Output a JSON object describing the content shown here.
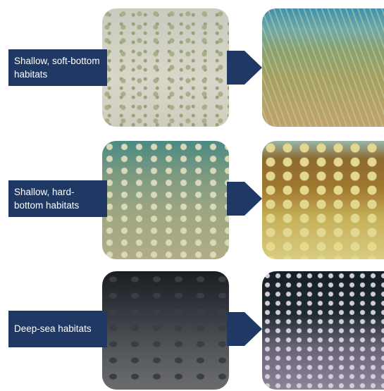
{
  "rows": [
    {
      "label": "Shallow, soft-bottom habitats"
    },
    {
      "label": "Shallow, hard-bottom habitats"
    },
    {
      "label": "Deep-sea habitats"
    }
  ]
}
